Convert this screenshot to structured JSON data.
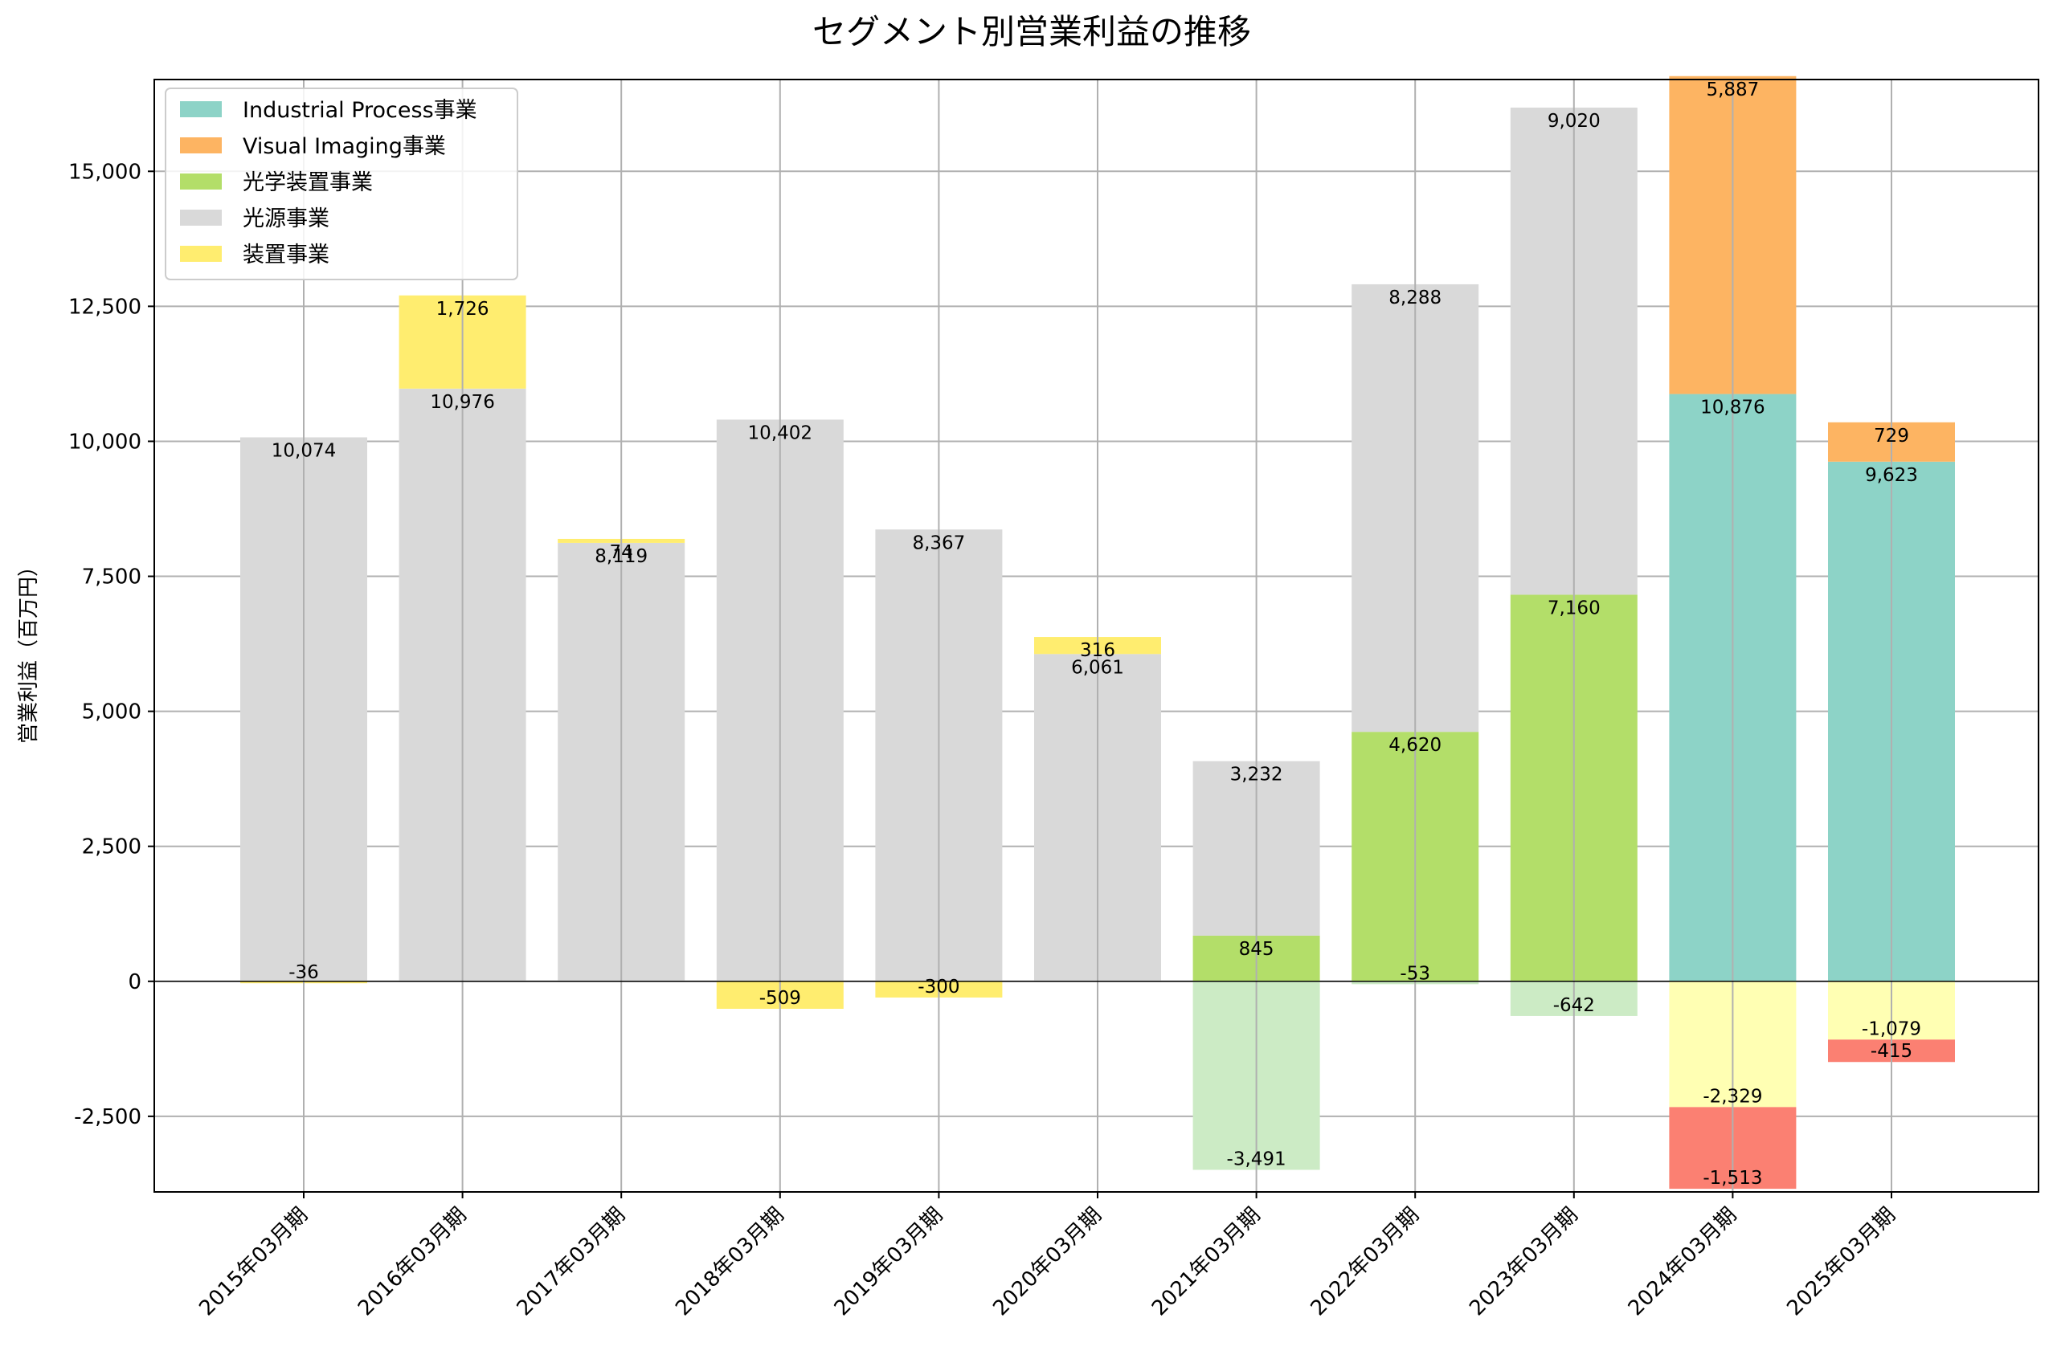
{
  "chart_data": {
    "type": "bar",
    "stacked": true,
    "title": "セグメント別営業利益の推移",
    "ylabel": "営業利益（百万円）",
    "xlabel": "",
    "ylim": [
      -3900,
      16700
    ],
    "yticks": [
      -2500,
      0,
      2500,
      5000,
      7500,
      10000,
      12500,
      15000
    ],
    "ytick_labels": [
      "-2,500",
      "0",
      "2,500",
      "5,000",
      "7,500",
      "10,000",
      "12,500",
      "15,000"
    ],
    "grid": true,
    "legend_position": "top-left",
    "categories": [
      "2015年03月期",
      "2016年03月期",
      "2017年03月期",
      "2018年03月期",
      "2019年03月期",
      "2020年03月期",
      "2021年03月期",
      "2022年03月期",
      "2023年03月期",
      "2024年03月期",
      "2025年03月期"
    ],
    "series": [
      {
        "name": "Industrial Process事業",
        "color": "#8dd3c7",
        "negative_color": "#fb8072",
        "values": [
          null,
          null,
          null,
          null,
          null,
          null,
          null,
          null,
          null,
          10876,
          9623
        ],
        "labels": [
          "",
          "",
          "",
          "",
          "",
          "",
          "",
          "",
          "",
          "10,876",
          "9,623"
        ]
      },
      {
        "name": "Visual Imaging事業",
        "color": "#fdb462",
        "negative_color": "#ffff99",
        "values": [
          null,
          null,
          null,
          null,
          null,
          null,
          null,
          null,
          null,
          5887,
          729
        ],
        "labels": [
          "",
          "",
          "",
          "",
          "",
          "",
          "",
          "",
          "",
          "5,887",
          "729"
        ]
      },
      {
        "name": "光学装置事業",
        "color": "#b3de69",
        "negative_color": "#ccebc5",
        "values": [
          null,
          null,
          null,
          null,
          null,
          null,
          845,
          4620,
          7160,
          null,
          null
        ],
        "labels": [
          "",
          "",
          "",
          "",
          "",
          "",
          "845",
          "4,620",
          "7,160",
          "",
          ""
        ]
      },
      {
        "name": "光源事業",
        "color": "#d9d9d9",
        "negative_color": "#ccebc5",
        "values": [
          10074,
          10976,
          8119,
          10402,
          8367,
          6061,
          3232,
          8288,
          9020,
          null,
          null
        ],
        "labels": [
          "10,074",
          "10,976",
          "8,119",
          "10,402",
          "8,367",
          "6,061",
          "3,232",
          "8,288",
          "9,020",
          "",
          ""
        ]
      },
      {
        "name": "装置事業",
        "color": "#ffed6f",
        "negative_color": "#ffed6f",
        "values": [
          -36,
          1726,
          74,
          -509,
          -300,
          316,
          null,
          null,
          null,
          null,
          null
        ],
        "labels": [
          "-36",
          "1,726",
          "74",
          "-509",
          "-300",
          "316",
          "",
          "",
          "",
          "",
          ""
        ]
      }
    ],
    "extra_negative_segments": [
      {
        "category": "2021年03月期",
        "value": -3491,
        "color": "#ccebc5",
        "label": "-3,491"
      },
      {
        "category": "2022年03月期",
        "value": -53,
        "color": "#ccebc5",
        "label": "-53"
      },
      {
        "category": "2023年03月期",
        "value": -642,
        "color": "#ccebc5",
        "label": "-642"
      },
      {
        "category": "2024年03月期",
        "value": -2329,
        "color": "#ffffb3",
        "label": "-2,329"
      },
      {
        "category": "2024年03月期",
        "value": -1513,
        "color": "#fb8072",
        "label": "-1,513"
      },
      {
        "category": "2025年03月期",
        "value": -1079,
        "color": "#ffffb3",
        "label": "-1,079"
      },
      {
        "category": "2025年03月期",
        "value": -415,
        "color": "#fb8072",
        "label": "-415"
      }
    ]
  }
}
